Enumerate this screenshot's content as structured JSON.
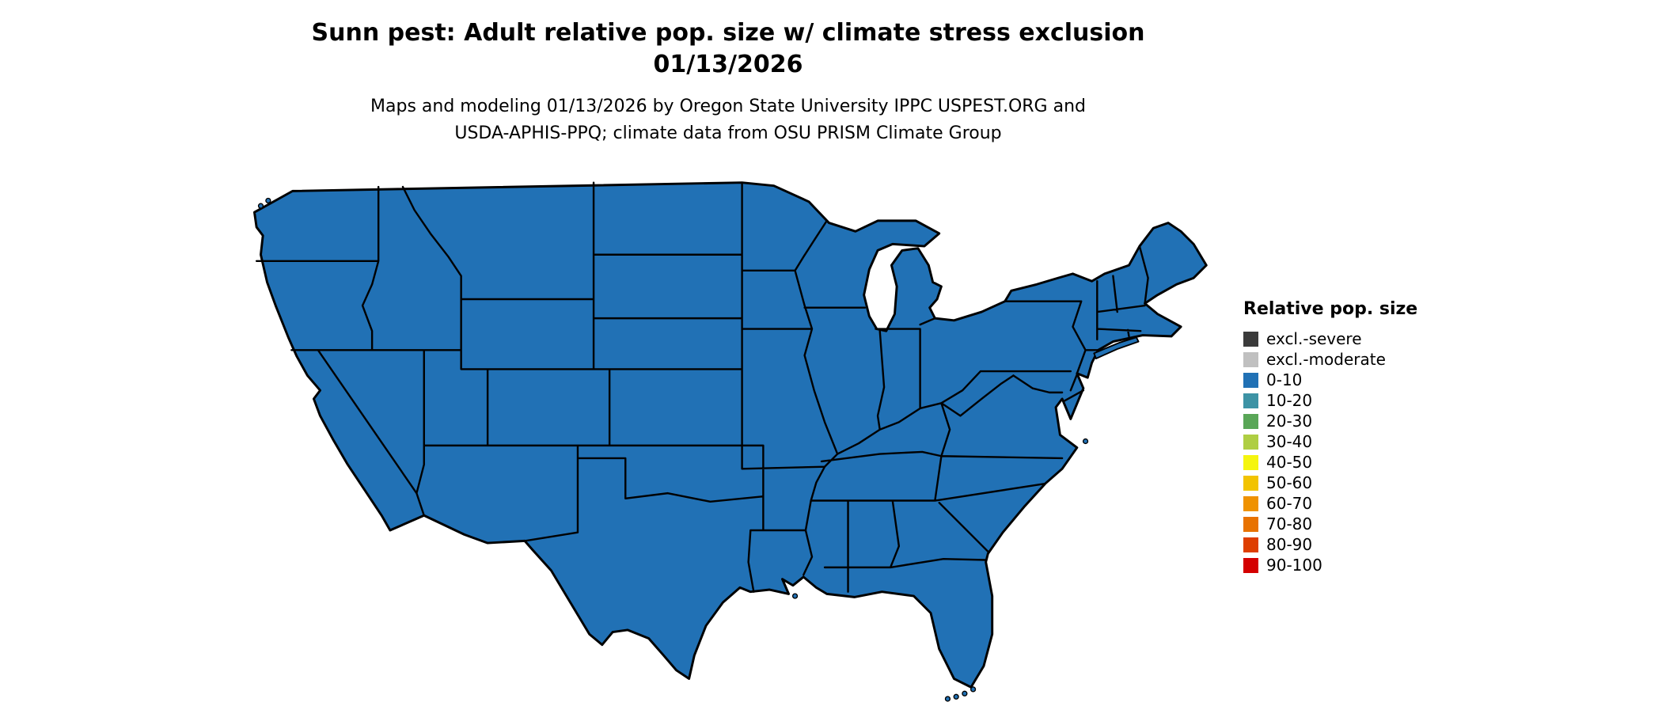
{
  "title": {
    "line1": "Sunn pest: Adult relative pop. size w/ climate stress exclusion",
    "line2": "01/13/2026"
  },
  "subtitle": {
    "line1": "Maps and modeling 01/13/2026 by Oregon State University IPPC USPEST.ORG and",
    "line2": "USDA-APHIS-PPQ; climate data from OSU PRISM Climate Group"
  },
  "legend": {
    "title": "Relative pop. size",
    "entries": [
      {
        "label": "excl.-severe",
        "color": "#3b3b3b"
      },
      {
        "label": "excl.-moderate",
        "color": "#c0c0c0"
      },
      {
        "label": "0-10",
        "color": "#2171b5"
      },
      {
        "label": "10-20",
        "color": "#3d93a5"
      },
      {
        "label": "20-30",
        "color": "#59a657"
      },
      {
        "label": "30-40",
        "color": "#afce43"
      },
      {
        "label": "40-50",
        "color": "#f5f50f"
      },
      {
        "label": "50-60",
        "color": "#f2c300"
      },
      {
        "label": "60-70",
        "color": "#ef9200"
      },
      {
        "label": "70-80",
        "color": "#e87200"
      },
      {
        "label": "80-90",
        "color": "#de3e00"
      },
      {
        "label": "90-100",
        "color": "#d40000"
      }
    ]
  },
  "map": {
    "description": "Contiguous United States choropleth; all states shown in the 0-10 relative population size class",
    "fill_color": "#2171b5",
    "border_color": "#000000",
    "value_category_everywhere": "0-10"
  }
}
